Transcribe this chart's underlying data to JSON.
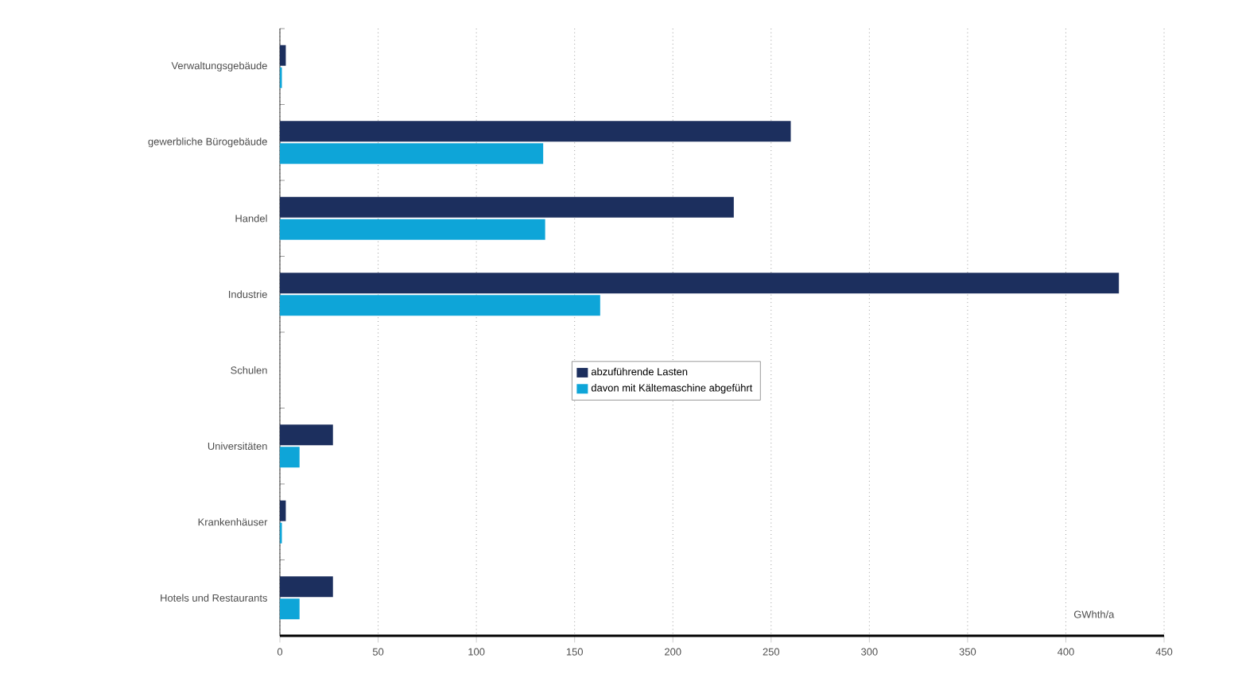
{
  "chart_data": {
    "type": "bar",
    "orientation": "horizontal",
    "categories": [
      "Verwaltungsgebäude",
      "gewerbliche Bürogebäude",
      "Handel",
      "Industrie",
      "Schulen",
      "Universitäten",
      "Krankenhäuser",
      "Hotels und Restaurants"
    ],
    "series": [
      {
        "name": "abzuführende Lasten",
        "color": "#1c2f5e",
        "values": [
          3,
          260,
          231,
          427,
          0,
          27,
          3,
          27
        ]
      },
      {
        "name": "davon mit Kältemaschine abgeführt",
        "color": "#0ea5d8",
        "values": [
          1,
          134,
          135,
          163,
          0,
          10,
          1,
          10
        ]
      }
    ],
    "xlabel": "GWhth/a",
    "xlim": [
      0,
      450
    ],
    "xticks": [
      0,
      50,
      100,
      150,
      200,
      250,
      300,
      350,
      400,
      450
    ],
    "grid": "x",
    "legend": "center"
  }
}
